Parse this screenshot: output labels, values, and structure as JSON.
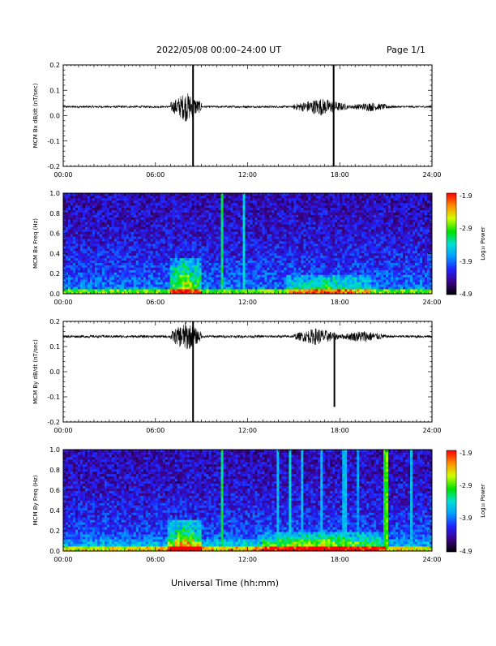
{
  "header": {
    "title": "2022/05/08  00:00–24:00 UT",
    "page": "Page 1/1"
  },
  "footer": {
    "xlabel": "Universal Time (hh:mm)"
  },
  "colorbar": {
    "label": "Log₁₀ Power",
    "ticks": [
      "-1.9",
      "-2.9",
      "-3.9",
      "-4.9"
    ],
    "range": [
      -4.9,
      -1.9
    ]
  },
  "colors": {
    "background": "#ffffff",
    "axes": "#000000"
  },
  "chart_data": [
    {
      "type": "line",
      "ylabel": "MCM Bx dB/dt (nT/sec)",
      "xlim": [
        0,
        24
      ],
      "ylim": [
        -0.2,
        0.2
      ],
      "x_tick_labels": [
        "00:00",
        "06:00",
        "12:00",
        "18:00",
        "24:00"
      ],
      "y_tick_labels": [
        "0.2",
        "0.1",
        "0.0",
        "-0.1",
        "-0.2"
      ],
      "baseline": 0.035,
      "noise_amplitude": 0.004,
      "bursts": [
        {
          "start_hour": 7.0,
          "end_hour": 9.0,
          "amplitude": 0.06
        },
        {
          "start_hour": 15.0,
          "end_hour": 18.5,
          "amplitude": 0.035
        },
        {
          "start_hour": 18.5,
          "end_hour": 21.5,
          "amplitude": 0.018
        }
      ],
      "spikes": [
        {
          "hour": 8.45,
          "low": -0.2,
          "high": 0.2
        },
        {
          "hour": 17.6,
          "low": -0.2,
          "high": 0.2
        }
      ]
    },
    {
      "type": "heatmap",
      "ylabel": "MCM Bx Freq (Hz)",
      "xlim": [
        0,
        24
      ],
      "ylim": [
        0,
        1
      ],
      "x_tick_labels": [
        "00:00",
        "06:00",
        "12:00",
        "18:00",
        "24:00"
      ],
      "y_tick_labels": [
        "1.0",
        "0.8",
        "0.6",
        "0.4",
        "0.2",
        "0.0"
      ],
      "zlim": [
        -4.9,
        -1.9
      ],
      "enhancements": [
        {
          "start_hour": 7.0,
          "end_hour": 9.0,
          "max_freq": 0.35,
          "level": 0.55
        },
        {
          "start_hour": 14.5,
          "end_hour": 20.0,
          "max_freq": 0.18,
          "level": 0.35
        }
      ],
      "vertical_lines": [
        {
          "hour": 10.3,
          "level": 0.6
        },
        {
          "hour": 11.75,
          "level": 0.5
        }
      ]
    },
    {
      "type": "line",
      "ylabel": "MCM By dB/dt (nT/sec)",
      "xlim": [
        0,
        24
      ],
      "ylim": [
        -0.2,
        0.2
      ],
      "x_tick_labels": [
        "00:00",
        "06:00",
        "12:00",
        "18:00",
        "24:00"
      ],
      "y_tick_labels": [
        "0.2",
        "0.1",
        "0.0",
        "-0.1",
        "-0.2"
      ],
      "baseline": 0.14,
      "noise_amplitude": 0.005,
      "bursts": [
        {
          "start_hour": 7.0,
          "end_hour": 9.0,
          "amplitude": 0.06
        },
        {
          "start_hour": 15.0,
          "end_hour": 18.0,
          "amplitude": 0.035
        },
        {
          "start_hour": 18.0,
          "end_hour": 21.0,
          "amplitude": 0.025
        }
      ],
      "spikes": [
        {
          "hour": 8.45,
          "low": -0.2,
          "high": 0.2
        },
        {
          "hour": 17.65,
          "low": -0.14,
          "high": 0.14
        }
      ]
    },
    {
      "type": "heatmap",
      "ylabel": "MCM By Freq (Hz)",
      "xlim": [
        0,
        24
      ],
      "ylim": [
        0,
        1
      ],
      "x_tick_labels": [
        "00:00",
        "06:00",
        "12:00",
        "18:00",
        "24:00"
      ],
      "y_tick_labels": [
        "1.0",
        "0.8",
        "0.6",
        "0.4",
        "0.2",
        "0.0"
      ],
      "zlim": [
        -4.9,
        -1.9
      ],
      "enhancements": [
        {
          "start_hour": 6.8,
          "end_hour": 9.0,
          "max_freq": 0.3,
          "level": 0.55
        },
        {
          "start_hour": 13.0,
          "end_hour": 21.0,
          "max_freq": 0.2,
          "level": 0.4
        },
        {
          "start_hour": 0.0,
          "end_hour": 24.0,
          "max_freq": 0.12,
          "level": 0.22
        }
      ],
      "vertical_lines": [
        {
          "hour": 10.3,
          "level": 0.6
        },
        {
          "hour": 14.0,
          "level": 0.45
        },
        {
          "hour": 14.8,
          "level": 0.5
        },
        {
          "hour": 15.5,
          "level": 0.45
        },
        {
          "hour": 16.8,
          "level": 0.45
        },
        {
          "hour": 18.3,
          "level": 0.45
        },
        {
          "hour": 19.2,
          "level": 0.4
        },
        {
          "hour": 20.9,
          "level": 0.65
        },
        {
          "hour": 21.1,
          "level": 0.7
        },
        {
          "hour": 22.7,
          "level": 0.45
        }
      ]
    }
  ]
}
